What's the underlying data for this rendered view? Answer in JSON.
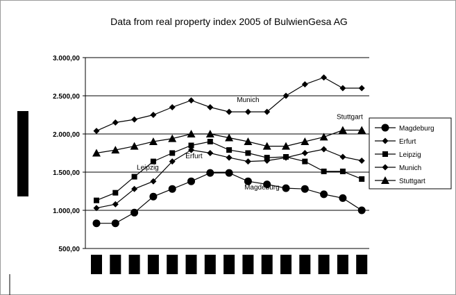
{
  "chart_data": {
    "type": "line",
    "title": "Data from real property index 2005 of BulwienGesa AG",
    "xlabel": "",
    "ylabel": "",
    "ylim": [
      500,
      3000
    ],
    "yticks": [
      500,
      1000,
      1500,
      2000,
      2500,
      3000
    ],
    "ytick_labels": [
      "500,00",
      "1.000,00",
      "1.500,00",
      "2.000,00",
      "2.500,00",
      "3.000,00"
    ],
    "grid": true,
    "legend_position": "right",
    "x_labels_obscured": true,
    "series": [
      {
        "name": "Magdeburg",
        "marker": "circle",
        "values": [
          830,
          830,
          970,
          1180,
          1280,
          1380,
          1490,
          1490,
          1380,
          1340,
          1290,
          1280,
          1210,
          1160,
          1000
        ]
      },
      {
        "name": "Erfurt",
        "marker": "diamond",
        "values": [
          1030,
          1080,
          1280,
          1380,
          1640,
          1790,
          1750,
          1690,
          1640,
          1650,
          1690,
          1750,
          1800,
          1700,
          1650
        ]
      },
      {
        "name": "Leipzig",
        "marker": "square",
        "values": [
          1130,
          1230,
          1440,
          1640,
          1750,
          1850,
          1900,
          1790,
          1750,
          1690,
          1700,
          1640,
          1510,
          1510,
          1410
        ]
      },
      {
        "name": "Munich",
        "marker": "diamond",
        "values": [
          2040,
          2150,
          2190,
          2250,
          2350,
          2440,
          2350,
          2290,
          2290,
          2290,
          2500,
          2650,
          2740,
          2600,
          2600
        ]
      },
      {
        "name": "Stuttgart",
        "marker": "triangle",
        "values": [
          1750,
          1790,
          1840,
          1900,
          1940,
          2000,
          2000,
          1950,
          1900,
          1840,
          1840,
          1900,
          1960,
          2050,
          2050
        ]
      }
    ],
    "annotations": [
      {
        "text": "Munich",
        "series": "Munich",
        "index": 8
      },
      {
        "text": "Stuttgart",
        "series": "Stuttgart",
        "index": 13
      },
      {
        "text": "Leipzig",
        "series": "Leipzig",
        "index": 3
      },
      {
        "text": "Erfurt",
        "series": "Erfurt",
        "index": 5
      },
      {
        "text": "Magdeburg",
        "series": "Magdeburg",
        "index": 8
      }
    ],
    "line_color": "#000000",
    "grid_color": "#000000"
  }
}
